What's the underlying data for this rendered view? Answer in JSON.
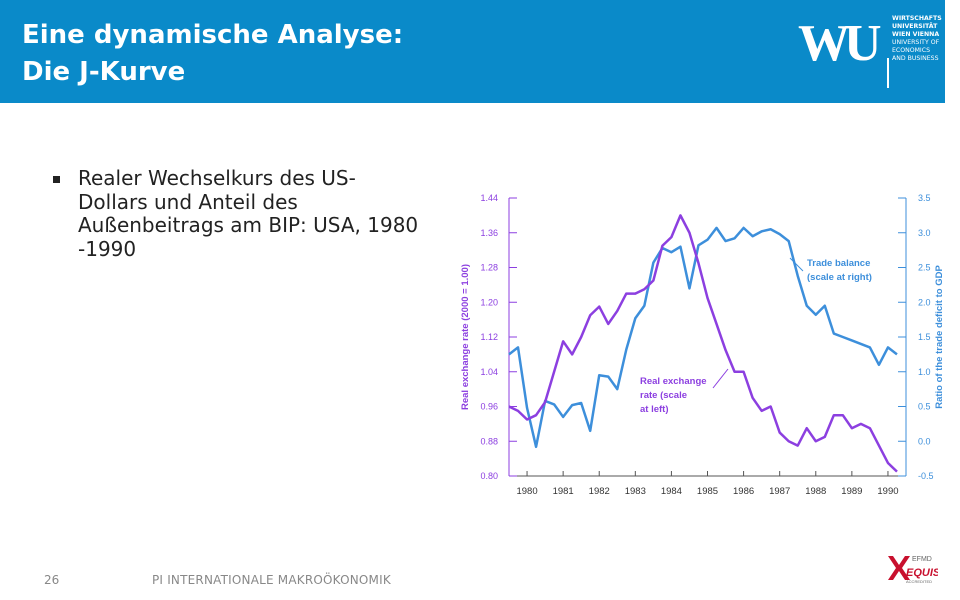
{
  "header": {
    "title_line1": "Eine dynamische Analyse:",
    "title_line2": "Die J-Kurve",
    "background": "#0a8ac9"
  },
  "logo": {
    "mark": "WU",
    "line1": "WIRTSCHAFTS",
    "line2": "UNIVERSITÄT",
    "line3": "WIEN VIENNA",
    "line4": "UNIVERSITY OF",
    "line5": "ECONOMICS",
    "line6": "AND BUSINESS"
  },
  "content": {
    "bullet": "Realer Wechselkurs des US-Dollars und Anteil des Außenbeitrags am BIP: USA, 1980 -1990"
  },
  "chart_data": {
    "type": "line",
    "ylabel_left": "Real exchange rate (2000 = 1.00)",
    "ylabel_right": "Ratio of the trade deficit to GDP",
    "ylim_left": [
      0.8,
      1.44
    ],
    "ylim_right": [
      -0.5,
      3.5
    ],
    "yticks_left": [
      "0.80",
      "0.88",
      "0.96",
      "1.04",
      "1.12",
      "1.20",
      "1.28",
      "1.36",
      "1.44"
    ],
    "yticks_right": [
      "-0.5",
      "0.0",
      "0.5",
      "1.0",
      "1.5",
      "2.0",
      "2.5",
      "3.0",
      "3.5"
    ],
    "x_ticks": [
      "1980",
      "1981",
      "1982",
      "1983",
      "1984",
      "1985",
      "1986",
      "1987",
      "1988",
      "1989",
      "1990"
    ],
    "grid": false,
    "series": [
      {
        "name": "Trade balance (scale at right)",
        "annotation_line1": "Trade balance",
        "annotation_line2": "(scale at right)",
        "axis": "right",
        "color": "#3d8fdb",
        "x": [
          1979.5,
          1979.75,
          1980.0,
          1980.25,
          1980.5,
          1980.75,
          1981.0,
          1981.25,
          1981.5,
          1981.75,
          1982.0,
          1982.25,
          1982.5,
          1982.75,
          1983.0,
          1983.25,
          1983.5,
          1983.75,
          1984.0,
          1984.25,
          1984.5,
          1984.75,
          1985.0,
          1985.25,
          1985.5,
          1985.75,
          1986.0,
          1986.25,
          1986.5,
          1986.75,
          1987.0,
          1987.25,
          1987.5,
          1987.75,
          1988.0,
          1988.25,
          1988.5,
          1988.75,
          1989.0,
          1989.25,
          1989.5,
          1989.75,
          1990.0,
          1990.25
        ],
        "values": [
          1.25,
          1.35,
          0.48,
          -0.08,
          0.58,
          0.53,
          0.35,
          0.52,
          0.55,
          0.15,
          0.95,
          0.93,
          0.75,
          1.32,
          1.77,
          1.95,
          2.57,
          2.78,
          2.72,
          2.8,
          2.2,
          2.82,
          2.9,
          3.07,
          2.88,
          2.92,
          3.07,
          2.95,
          3.02,
          3.05,
          2.98,
          2.88,
          2.38,
          1.95,
          1.82,
          1.95,
          1.55,
          1.5,
          1.45,
          1.4,
          1.35,
          1.1,
          1.35,
          1.25
        ]
      },
      {
        "name": "Real exchange rate (scale at left)",
        "annotation_line1": "Real exchange",
        "annotation_line2": "rate (scale",
        "annotation_line3": "at left)",
        "axis": "left",
        "color": "#8c3fe0",
        "x": [
          1979.5,
          1979.75,
          1980.0,
          1980.25,
          1980.5,
          1980.75,
          1981.0,
          1981.25,
          1981.5,
          1981.75,
          1982.0,
          1982.25,
          1982.5,
          1982.75,
          1983.0,
          1983.25,
          1983.5,
          1983.75,
          1984.0,
          1984.25,
          1984.5,
          1984.75,
          1985.0,
          1985.25,
          1985.5,
          1985.75,
          1986.0,
          1986.25,
          1986.5,
          1986.75,
          1987.0,
          1987.25,
          1987.5,
          1987.75,
          1988.0,
          1988.25,
          1988.5,
          1988.75,
          1989.0,
          1989.25,
          1989.5,
          1989.75,
          1990.0,
          1990.25
        ],
        "values": [
          0.96,
          0.95,
          0.93,
          0.94,
          0.97,
          1.04,
          1.11,
          1.08,
          1.12,
          1.17,
          1.19,
          1.15,
          1.18,
          1.22,
          1.22,
          1.23,
          1.25,
          1.33,
          1.35,
          1.4,
          1.36,
          1.29,
          1.21,
          1.15,
          1.09,
          1.04,
          1.04,
          0.98,
          0.95,
          0.96,
          0.9,
          0.88,
          0.87,
          0.91,
          0.88,
          0.89,
          0.94,
          0.94,
          0.91,
          0.92,
          0.91,
          0.87,
          0.83,
          0.81
        ]
      }
    ]
  },
  "footer": {
    "page_number": "26",
    "course": "PI INTERNATIONALE MAKROÖKONOMIK"
  },
  "accreditation": {
    "efmd": "EFMD",
    "equis": "EQUIS",
    "accredited": "ACCREDITED"
  },
  "colors": {
    "exchange_rate_axis": "#8c3fe0",
    "trade_balance_axis": "#3d8fdb",
    "equis_red": "#c8102e"
  }
}
